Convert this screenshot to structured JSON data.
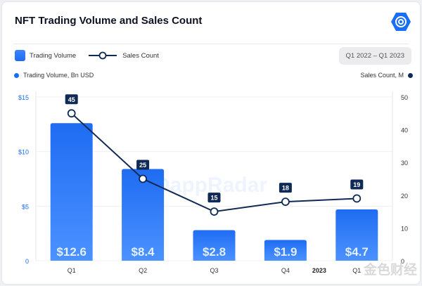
{
  "header": {
    "title": "NFT Trading Volume and Sales Count",
    "range_label": "Q1 2022 – Q1 2023"
  },
  "legend": {
    "bar": "Trading Volume",
    "line": "Sales Count"
  },
  "colors": {
    "bar": "#1f6cf2",
    "line": "#102a56",
    "accent": "#1a6ef5"
  },
  "watermark": {
    "center": "DappRadar",
    "corner": "金色财经"
  },
  "chart_data": {
    "type": "bar+line",
    "title": "NFT Trading Volume and Sales Count",
    "categories": [
      "Q1",
      "Q2",
      "Q3",
      "Q4",
      "Q1"
    ],
    "year_label": "2023",
    "left_axis": {
      "label": "Trading Volume, Bn USD",
      "ticks": [
        "0",
        "$5",
        "$10",
        "$15"
      ],
      "range": [
        0,
        15
      ]
    },
    "right_axis": {
      "label": "Sales Count, M",
      "ticks": [
        "0",
        "10",
        "20",
        "30",
        "40",
        "50"
      ],
      "range": [
        0,
        50
      ]
    },
    "series": [
      {
        "name": "Trading Volume",
        "type": "bar",
        "values": [
          12.6,
          8.4,
          2.8,
          1.9,
          4.7
        ],
        "labels": [
          "$12.6",
          "$8.4",
          "$2.8",
          "$1.9",
          "$4.7"
        ]
      },
      {
        "name": "Sales Count",
        "type": "line",
        "values": [
          45,
          25,
          15,
          18,
          19
        ],
        "labels": [
          "45",
          "25",
          "15",
          "18",
          "19"
        ]
      }
    ],
    "grid": true
  }
}
